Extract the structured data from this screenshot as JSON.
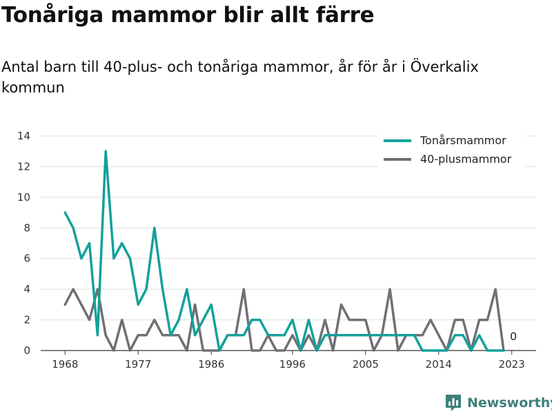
{
  "header": {
    "title": "Tonåriga mammor blir allt färre",
    "subtitle": "Antal barn till 40-plus- och tonåriga mammor, år för år i Överkalix kommun"
  },
  "brand": {
    "name": "Newsworthy",
    "icon": "bar-chart-logo-icon",
    "color": "#3d7f7c"
  },
  "chart_data": {
    "type": "line",
    "title": "",
    "xlabel": "",
    "ylabel": "",
    "xlim": [
      1968,
      2023
    ],
    "ylim": [
      0,
      14
    ],
    "yticks": [
      0,
      2,
      4,
      6,
      8,
      10,
      12,
      14
    ],
    "xticks": [
      1968,
      1977,
      1986,
      1996,
      2005,
      2014,
      2023
    ],
    "grid": true,
    "legend_position": "top-right",
    "end_label": "0",
    "x": [
      1968,
      1969,
      1970,
      1971,
      1972,
      1973,
      1974,
      1975,
      1976,
      1977,
      1978,
      1979,
      1980,
      1981,
      1982,
      1983,
      1984,
      1985,
      1986,
      1987,
      1988,
      1989,
      1990,
      1991,
      1992,
      1993,
      1994,
      1995,
      1996,
      1997,
      1998,
      1999,
      2000,
      2001,
      2002,
      2003,
      2004,
      2005,
      2006,
      2007,
      2008,
      2009,
      2010,
      2011,
      2012,
      2013,
      2014,
      2015,
      2016,
      2017,
      2018,
      2019,
      2020,
      2021,
      2022
    ],
    "series": [
      {
        "name": "Tonårsmammor",
        "color": "#13a19a",
        "values": [
          9,
          8,
          6,
          7,
          1,
          13,
          6,
          7,
          6,
          3,
          4,
          8,
          4,
          1,
          2,
          4,
          1,
          2,
          3,
          0,
          1,
          1,
          1,
          2,
          2,
          1,
          1,
          1,
          2,
          0,
          2,
          0,
          1,
          1,
          1,
          1,
          1,
          1,
          1,
          1,
          1,
          1,
          1,
          1,
          0,
          0,
          0,
          0,
          1,
          1,
          0,
          1,
          0,
          0,
          0
        ]
      },
      {
        "name": "40-plusmammor",
        "color": "#707074",
        "values": [
          3,
          4,
          3,
          2,
          4,
          1,
          0,
          2,
          0,
          1,
          1,
          2,
          1,
          1,
          1,
          0,
          3,
          0,
          0,
          0,
          1,
          1,
          4,
          0,
          0,
          1,
          0,
          0,
          1,
          0,
          1,
          0,
          2,
          0,
          3,
          2,
          2,
          2,
          0,
          1,
          4,
          0,
          1,
          1,
          1,
          2,
          1,
          0,
          2,
          2,
          0,
          2,
          2,
          4,
          0
        ]
      }
    ]
  }
}
